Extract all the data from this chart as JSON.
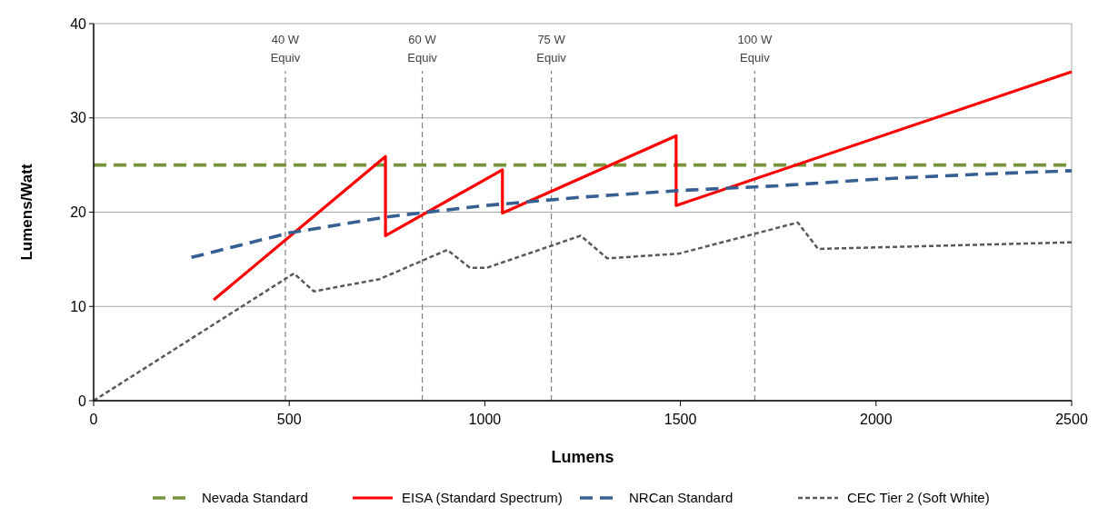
{
  "chart_data": {
    "type": "line",
    "xlabel": "Lumens",
    "ylabel": "Lumens/Watt",
    "xlim": [
      0,
      2500
    ],
    "xticks": [
      0,
      500,
      1000,
      1500,
      2000,
      2500
    ],
    "ylim": [
      0,
      40
    ],
    "yticks": [
      0,
      10,
      20,
      30,
      40
    ],
    "grid": "y",
    "legend": "bottom",
    "marker": "none",
    "ref_lines": [
      {
        "axis": "x",
        "value": 490,
        "label": "40 W Equiv",
        "color": "#808080",
        "line_style": "dashed"
      },
      {
        "axis": "x",
        "value": 840,
        "label": "60 W Equiv",
        "color": "#808080",
        "line_style": "dashed"
      },
      {
        "axis": "x",
        "value": 1170,
        "label": "75 W Equiv",
        "color": "#808080",
        "line_style": "dashed"
      },
      {
        "axis": "x",
        "value": 1690,
        "label": "100 W Equiv",
        "color": "#808080",
        "line_style": "dashed"
      }
    ],
    "series": [
      {
        "name": "Nevada Standard",
        "color": "#77933c",
        "line_style": "dashed",
        "x": [
          0,
          2500
        ],
        "values": [
          25,
          25
        ]
      },
      {
        "name": "EISA (Standard Spectrum)",
        "color": "#ff0000",
        "line_style": "solid",
        "x": [
          307,
          746,
          746,
          1045,
          1045,
          1489,
          1489,
          2500
        ],
        "values": [
          10.7,
          25.9,
          17.5,
          24.5,
          19.9,
          28.1,
          20.7,
          34.9
        ]
      },
      {
        "name": "NRCan Standard",
        "color": "#376092",
        "line_style": "dashed",
        "x": [
          250,
          500,
          750,
          1000,
          1250,
          1500,
          1750,
          2000,
          2250,
          2500
        ],
        "values": [
          15.2,
          17.8,
          19.5,
          20.7,
          21.6,
          22.3,
          22.8,
          23.5,
          24.0,
          24.4
        ]
      },
      {
        "name": "CEC Tier 2 (Soft White)",
        "color": "#595959",
        "line_style": "dotted",
        "x": [
          0,
          311,
          512,
          563,
          731,
          904,
          962,
          1005,
          1245,
          1313,
          1496,
          1800,
          1852,
          2500
        ],
        "values": [
          0,
          8.2,
          13.5,
          11.6,
          12.9,
          16.0,
          14.1,
          14.1,
          17.5,
          15.1,
          15.6,
          18.9,
          16.1,
          16.8
        ]
      }
    ]
  }
}
